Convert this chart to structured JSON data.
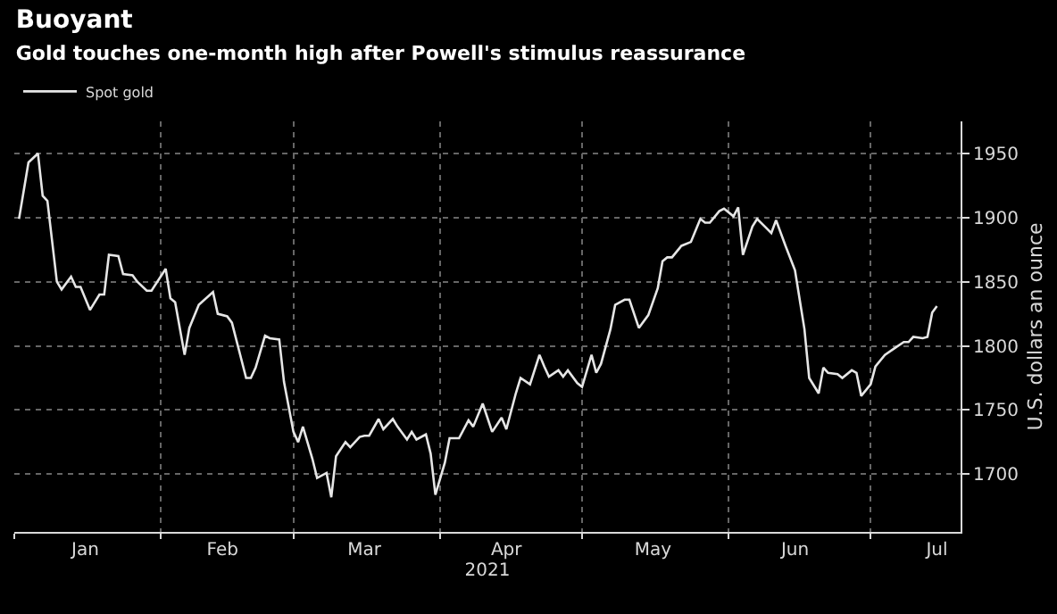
{
  "chart_data": {
    "type": "line",
    "title": "Buoyant",
    "subtitle": "Gold touches one-month high after Powell's stimulus reassurance",
    "xlabel": "2021",
    "ylabel": "U.S. dollars an ounce",
    "x": [
      "2021-01-02",
      "2021-01-04",
      "2021-01-06",
      "2021-01-07",
      "2021-01-08",
      "2021-01-10",
      "2021-01-11",
      "2021-01-13",
      "2021-01-14",
      "2021-01-15",
      "2021-01-17",
      "2021-01-19",
      "2021-01-20",
      "2021-01-21",
      "2021-01-23",
      "2021-01-24",
      "2021-01-26",
      "2021-01-27",
      "2021-01-29",
      "2021-01-30",
      "2021-02-02",
      "2021-02-03",
      "2021-02-04",
      "2021-02-06",
      "2021-02-07",
      "2021-02-09",
      "2021-02-12",
      "2021-02-13",
      "2021-02-15",
      "2021-02-16",
      "2021-02-19",
      "2021-02-20",
      "2021-02-21",
      "2021-02-23",
      "2021-02-24",
      "2021-02-26",
      "2021-02-27",
      "2021-03-01",
      "2021-03-02",
      "2021-03-03",
      "2021-03-05",
      "2021-03-06",
      "2021-03-08",
      "2021-03-09",
      "2021-03-10",
      "2021-03-12",
      "2021-03-13",
      "2021-03-15",
      "2021-03-16",
      "2021-03-17",
      "2021-03-19",
      "2021-03-20",
      "2021-03-22",
      "2021-03-23",
      "2021-03-25",
      "2021-03-26",
      "2021-03-27",
      "2021-03-29",
      "2021-03-30",
      "2021-03-31",
      "2021-04-02",
      "2021-04-03",
      "2021-04-05",
      "2021-04-07",
      "2021-04-08",
      "2021-04-10",
      "2021-04-12",
      "2021-04-14",
      "2021-04-15",
      "2021-04-17",
      "2021-04-18",
      "2021-04-20",
      "2021-04-22",
      "2021-04-23",
      "2021-04-24",
      "2021-04-26",
      "2021-04-27",
      "2021-04-28",
      "2021-04-30",
      "2021-05-01",
      "2021-05-03",
      "2021-05-04",
      "2021-05-05",
      "2021-05-07",
      "2021-05-08",
      "2021-05-10",
      "2021-05-11",
      "2021-05-13",
      "2021-05-15",
      "2021-05-17",
      "2021-05-18",
      "2021-05-19",
      "2021-05-20",
      "2021-05-22",
      "2021-05-24",
      "2021-05-26",
      "2021-05-27",
      "2021-05-28",
      "2021-05-30",
      "2021-05-31",
      "2021-06-02",
      "2021-06-03",
      "2021-06-04",
      "2021-06-06",
      "2021-06-07",
      "2021-06-10",
      "2021-06-11",
      "2021-06-13",
      "2021-06-15",
      "2021-06-17",
      "2021-06-18",
      "2021-06-20",
      "2021-06-21",
      "2021-06-22",
      "2021-06-24",
      "2021-06-25",
      "2021-06-27",
      "2021-06-28",
      "2021-06-29",
      "2021-07-01",
      "2021-07-02",
      "2021-07-04",
      "2021-07-06",
      "2021-07-08",
      "2021-07-09",
      "2021-07-10",
      "2021-07-12",
      "2021-07-13",
      "2021-07-14",
      "2021-07-15"
    ],
    "series": [
      {
        "name": "Spot gold",
        "color": "#e6e6e6",
        "values": [
          1899,
          1943,
          1950,
          1917,
          1913,
          1850,
          1844,
          1854,
          1846,
          1846,
          1828,
          1840,
          1840,
          1871,
          1870,
          1856,
          1855,
          1850,
          1843,
          1843,
          1860,
          1837,
          1834,
          1793,
          1814,
          1832,
          1842,
          1825,
          1823,
          1818,
          1775,
          1775,
          1783,
          1808,
          1806,
          1805,
          1772,
          1733,
          1725,
          1737,
          1712,
          1697,
          1701,
          1682,
          1714,
          1725,
          1721,
          1729,
          1730,
          1730,
          1743,
          1735,
          1743,
          1737,
          1727,
          1733,
          1727,
          1731,
          1716,
          1684,
          1709,
          1728,
          1728,
          1742,
          1737,
          1755,
          1733,
          1744,
          1735,
          1763,
          1775,
          1770,
          1793,
          1784,
          1776,
          1781,
          1776,
          1781,
          1771,
          1768,
          1793,
          1779,
          1786,
          1813,
          1832,
          1836,
          1836,
          1814,
          1824,
          1845,
          1866,
          1869,
          1869,
          1878,
          1881,
          1899,
          1896,
          1896,
          1905,
          1907,
          1901,
          1908,
          1871,
          1893,
          1899,
          1888,
          1898,
          1878,
          1859,
          1813,
          1775,
          1763,
          1783,
          1779,
          1778,
          1775,
          1781,
          1779,
          1761,
          1770,
          1784,
          1793,
          1798,
          1803,
          1803,
          1807,
          1806,
          1807,
          1826,
          1831
        ]
      }
    ],
    "xlim": [
      "2021-01-01",
      "2021-07-20"
    ],
    "xticks": [
      {
        "value": "2021-01-16",
        "label": "Jan"
      },
      {
        "value": "2021-02-14",
        "label": "Feb"
      },
      {
        "value": "2021-03-16",
        "label": "Mar"
      },
      {
        "value": "2021-04-15",
        "label": "Apr"
      },
      {
        "value": "2021-05-16",
        "label": "May"
      },
      {
        "value": "2021-06-15",
        "label": "Jun"
      },
      {
        "value": "2021-07-15",
        "label": "Jul"
      }
    ],
    "ylim": [
      1655,
      1975
    ],
    "yticks": [
      1700,
      1750,
      1800,
      1850,
      1900,
      1950
    ],
    "grid": true,
    "legend": "top left",
    "line_style": "solid",
    "marker": "none"
  }
}
